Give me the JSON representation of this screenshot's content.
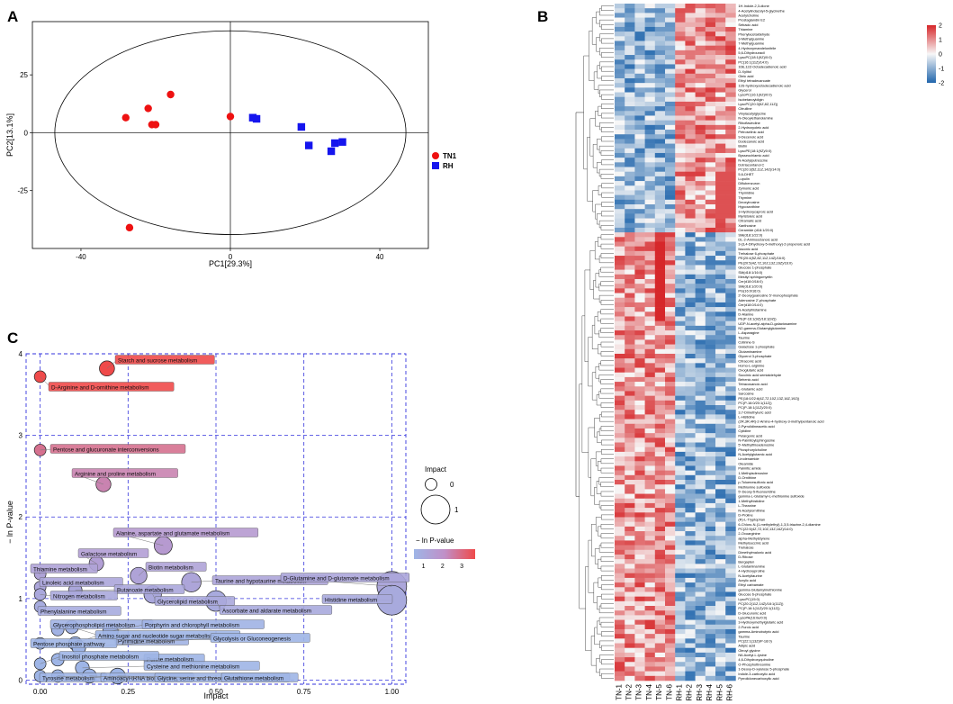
{
  "panels": {
    "a": "A",
    "b": "B",
    "c": "C"
  },
  "colors": {
    "tn": "#ee1111",
    "rh": "#1515ee",
    "low": "#2166ac",
    "mid": "#f7f7f7",
    "high": "#d6272a",
    "bubble_low": "#9eb5e6",
    "bubble_high": "#ef4a4a",
    "grid": "#3333dd"
  },
  "chart_data": [
    {
      "id": "pca",
      "type": "scatter",
      "xlabel": "PC1[29.3%]",
      "ylabel": "PC2[13.1%]",
      "xlim": [
        -53,
        53
      ],
      "ylim": [
        -50,
        48
      ],
      "xticks": [
        -40,
        0,
        40
      ],
      "yticks": [
        25,
        0,
        -25
      ],
      "ellipse": {
        "cx": 0,
        "cy": 0,
        "rx": 47,
        "ry": 44
      },
      "legend": [
        "TN1",
        "RH"
      ],
      "series": [
        {
          "name": "TN1",
          "marker": "circle",
          "x": [
            -28,
            -22,
            -21,
            -16,
            -20,
            0,
            -27
          ],
          "y": [
            6.5,
            10.5,
            3.5,
            16.5,
            3.5,
            7,
            -41
          ]
        },
        {
          "name": "RH",
          "marker": "square",
          "x": [
            6,
            7,
            19,
            21,
            28,
            30,
            27
          ],
          "y": [
            6.5,
            6,
            2.5,
            -5.5,
            -4.5,
            -4,
            -8
          ]
        }
      ]
    },
    {
      "id": "heatmap",
      "type": "heatmap",
      "columns": [
        "TN-1",
        "TN-2",
        "TN-3",
        "TN-4",
        "TN-5",
        "TN-6",
        "RH-1",
        "RH-2",
        "RH-3",
        "RH-4",
        "RH-5",
        "RH-6"
      ],
      "colorbar": {
        "ticks": [
          2,
          1,
          0,
          -1,
          -2
        ],
        "labels": [
          "2",
          "1",
          "0",
          "-1",
          "-2"
        ]
      },
      "rows": [
        "1H-Indole-2,3-dione",
        "4-Acetylindazolyl-5-glycinethe",
        "Acetylcholine",
        "Prostaglandin E2",
        "Sebacic acid",
        "Thiamine",
        "Phenylacetaldehyde",
        "3-Methylguanine",
        "7-Methylguanine",
        "4-Hydroxymandelonitrile",
        "5,6-Dihydrouracil",
        "LysoPC(18:1(9Z)/0:0)",
        "PC(16:1(11Z)/14:0)",
        "16E,12Z-Octadecadienoic acid",
        "D-Xylitol",
        "Oleic acid",
        "Ethyl tetradecanoate",
        "13S-hydroxyoctadecadienoic acid",
        "Glycerol",
        "LysoPC(16:1(9Z)/0:0)",
        "Isobetanoyldigin",
        "LysoPC(20:3(5Z,8Z,11Z))",
        "Citrulline",
        "Vinylacetylglycine",
        "N-Oleoylethanolamine",
        "Riboflavindine",
        "2-Hydroxyoleic acid",
        "Petroselinic acid",
        "9-Decenoic acid",
        "Dodecanoic acid",
        "Biotin",
        "LysoPE(18:1(9Z)/0:0)",
        "Bysseochlamic acid",
        "N-Acetylputrescine",
        "Dotriacontanol C",
        "PC(20:3(5Z,11Z,14Z)/14:0)",
        "5,6-DHET",
        "Lupulin",
        "Diflubenzuron",
        "Zymonic acid",
        "Thymidine",
        "Thymine",
        "Deoxyinosine",
        "Hypoxanthine",
        "3-Hydroxycaproic acid",
        "Myristoleic acid",
        "Citramalic acid",
        "Xanthosine",
        "Ceramide (d18:1/20:0)",
        "SM(d18:1/22:0)",
        "DL-2-Aminooctanoic acid",
        "3-(3,4-Dihydroxy-5-methoxy)-2-propenoic acid",
        "Itaconic acid",
        "Trehalose 6-phosphate",
        "PE(20:4(5Z,8Z,11Z,14Z)/16:0)",
        "PE(20:5(4Z,7Z,10Z,13Z,16Z)/16:0)",
        "Glucose 1-phosphate",
        "SM(d18:1/16:0)",
        "Mesityl sphingomyelin",
        "Cer(d18:0/16:0)",
        "SM(d18:1/20:0)",
        "PG(16:0/16:0)",
        "2'-Deoxyguanosine 5'-monophosphate",
        "Adenosine 2'-phosphate",
        "Cer(d18:0/14:0)",
        "N-Acetylhistamine",
        "D-Alanine",
        "PE(P-16:1(9Z)/18:1(9Z))",
        "UDP-N-acetyl-alpha-D-galactosamine",
        "N2-gamma-Glutamylglutamine",
        "L-Asparagine",
        "Taurine",
        "Cotinine-S",
        "Galactose 1-phosphate",
        "Glutaminamine",
        "Glycerol 3-phosphate",
        "Citraconic acid",
        "Homo-L-arginine",
        "Oxoglutaric acid",
        "Succinic acid semialdehyde",
        "Behenic acid",
        "Tetracosanoic acid",
        "L-Glutamic acid",
        "Sarcosine",
        "PE(18:0/22:6(4Z,7Z,10Z,13Z,16Z,19Z))",
        "PC(P-16:0/20:1(11Z))",
        "PC(P-18:1(11Z)/20:0)",
        "3,7-Dimethyluric acid",
        "L-Histidine",
        "(2R,3R,4R)-2-Amino-4-hydroxy-3-methylpentanoic acid",
        "2-Pyrrolidineacetic acid",
        "Cytidine",
        "Pelargonic acid",
        "N-Palmitoylsphingosine",
        "5'-Methylthioadenosine",
        "Phosphorylcholine",
        "N-Acetylglutamic acid",
        "Linolenamide",
        "Oleamide",
        "Palmitic amide",
        "1-Methyladenosine",
        "D-Ornithine",
        "p-Toluenesulfonic acid",
        "Methionine sulfoxide",
        "5'-Deoxy-5-fluorouridine",
        "gamma-L-Glutamyl-L-methionine sulfoxide",
        "1-Methylhistidine",
        "L-Theanine",
        "N-Acetylornithine",
        "D-Proline",
        "(R)-L-Tryptophan",
        "6-Chloro-N-(1-methylethyl)-1,3,5-triazine-2,4-diamine",
        "PC(22:5(4Z,7Z,10Z,13Z,16Z)/14:0)",
        "2-Oxoarginine",
        "alpha-Methylstyrene",
        "Methylsuccinic acid",
        "Trehalose",
        "Dimethylmalonic acid",
        "D-Ribose",
        "Bergapten",
        "L-Glutaminamine",
        "4-Hydroxyproline",
        "N-Acetyltaurine",
        "Acrylic acid",
        "Ethyl carbamate",
        "gamma-Glutamylmethionine",
        "Glucose 6-phosphate",
        "LysoPC(15:0)",
        "PC(20:2(11Z,14Z)/18:1(11Z))",
        "PC(P-16:1(11Z)/20:1(11Z))",
        "D-Glucuronic acid",
        "LysoPA(16:0e/0:0)",
        "3-Hydroxymethylglutaric acid",
        "2-Furoic acid",
        "gamma-Aminobutyric acid",
        "Taurine",
        "PC(22:1(13Z)/P-18:0)",
        "Adipic acid",
        "Oleoyl glycine",
        "N6-Acetyl-L-lysine",
        "4,6-Dihydroxyquinoline",
        "O-Phosphothreonine",
        "1-Deoxy-D-xylulose 5-phosphate",
        "Indole-3-carboxylic acid",
        "Pyrrolidonecarboxylic acid"
      ]
    },
    {
      "id": "pathway",
      "type": "scatter",
      "xlabel": "Impact",
      "ylabel": "− ln P-value",
      "xlim": [
        -0.04,
        1.04
      ],
      "ylim": [
        -0.05,
        4.0
      ],
      "xticks": [
        0,
        0.25,
        0.5,
        0.75,
        1.0
      ],
      "xtick_labels": [
        "0.00",
        "0.25",
        "0.50",
        "0.75",
        "1.00"
      ],
      "yticks": [
        0,
        1,
        2,
        3,
        4
      ],
      "size_legend_title": "Impact",
      "size_legend": [
        0,
        1
      ],
      "color_legend_title": "− ln P-value",
      "color_legend_ticks": [
        1,
        2,
        3
      ],
      "points": [
        {
          "name": "Starch and sucrose metabolism",
          "impact": 0.19,
          "logp": 3.82
        },
        {
          "name": "D-Arginine and D-ornithine metabolism",
          "impact": 0.0,
          "logp": 3.72
        },
        {
          "name": "Pentose and glucuronate interconversions",
          "impact": 0.0,
          "logp": 2.82
        },
        {
          "name": "Arginine and proline metabolism",
          "impact": 0.18,
          "logp": 2.4
        },
        {
          "name": "Alanine, aspartate and glutamate metabolism",
          "impact": 0.35,
          "logp": 1.65
        },
        {
          "name": "Galactose metabolism",
          "impact": 0.16,
          "logp": 1.43
        },
        {
          "name": "Biotin metabolism",
          "impact": 0.28,
          "logp": 1.28
        },
        {
          "name": "Taurine and hypotaurine metabolism",
          "impact": 0.43,
          "logp": 1.2
        },
        {
          "name": "Thiamine metabolism",
          "impact": 0.0,
          "logp": 1.3
        },
        {
          "name": "D-Glutamine and D-glutamate metabolism",
          "impact": 1.0,
          "logp": 1.15
        },
        {
          "name": "Linoleic acid metabolism",
          "impact": 0.0,
          "logp": 1.14
        },
        {
          "name": "Butanoate metabolism",
          "impact": 0.1,
          "logp": 1.1
        },
        {
          "name": "Glycerolipid metabolism",
          "impact": 0.32,
          "logp": 1.05
        },
        {
          "name": "Nitrogen metabolism",
          "impact": 0.0,
          "logp": 1.05
        },
        {
          "name": "Histidine metabolism",
          "impact": 1.0,
          "logp": 0.98
        },
        {
          "name": "Ascorbate and aldarate metabolism",
          "impact": 0.5,
          "logp": 0.97
        },
        {
          "name": "Phenylalanine metabolism",
          "impact": 0.0,
          "logp": 0.9
        },
        {
          "name": "Pyrimidine metabolism",
          "impact": 0.09,
          "logp": 0.65
        },
        {
          "name": "Glycerophospholipid metabolism",
          "impact": 0.05,
          "logp": 0.62
        },
        {
          "name": "Porphyrin and chlorophyll metabolism",
          "impact": 0.2,
          "logp": 0.6
        },
        {
          "name": "Amino sugar and nucleotide sugar metabolism",
          "impact": 0.1,
          "logp": 0.45
        },
        {
          "name": "Glycolysis or Gluconeogenesis",
          "impact": 0.11,
          "logp": 0.4
        },
        {
          "name": "Pentose phosphate pathway",
          "impact": 0.0,
          "logp": 0.45
        },
        {
          "name": "Purine metabolism",
          "impact": 0.05,
          "logp": 0.25
        },
        {
          "name": "Inositol phosphate metabolism",
          "impact": 0.0,
          "logp": 0.2
        },
        {
          "name": "Cysteine and methionine metabolism",
          "impact": 0.12,
          "logp": 0.15
        },
        {
          "name": "Tyrosine metabolism",
          "impact": 0.0,
          "logp": 0.05
        },
        {
          "name": "Aminoacyl-tRNA biosynthesis",
          "impact": 0.05,
          "logp": 0.05
        },
        {
          "name": "Glycine, serine and threonine metabolism",
          "impact": 0.14,
          "logp": 0.05
        },
        {
          "name": "Glutathione metabolism",
          "impact": 0.22,
          "logp": 0.05
        }
      ]
    }
  ]
}
